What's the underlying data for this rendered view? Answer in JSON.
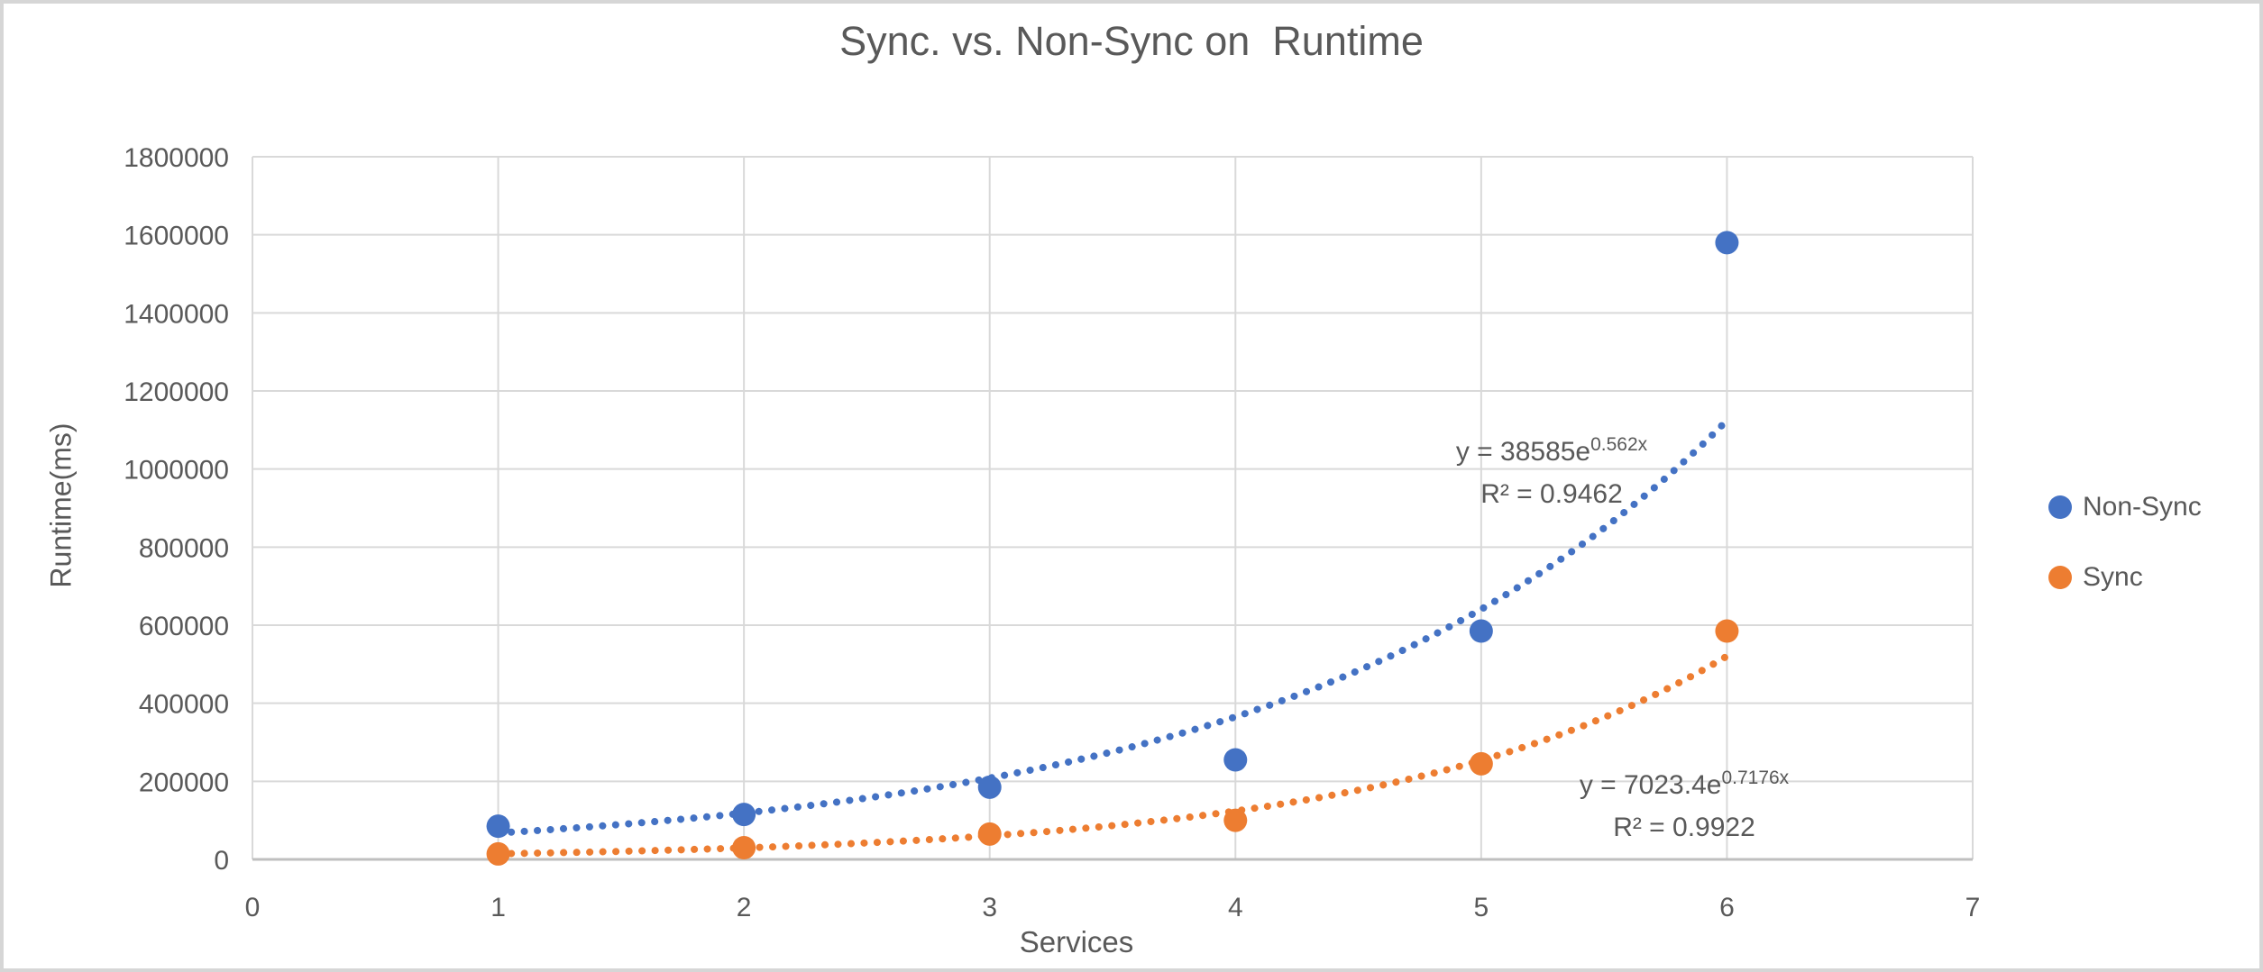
{
  "window": {
    "border_color": "#d6d6d6",
    "background": "#ffffff"
  },
  "chart_data": {
    "type": "scatter",
    "title": "Sync. vs. Non-Sync on  Runtime",
    "xlabel": "Services",
    "ylabel": "Runtime(ms)",
    "xlim": [
      0,
      7
    ],
    "ylim": [
      0,
      1800000
    ],
    "x_ticks": [
      0,
      1,
      2,
      3,
      4,
      5,
      6,
      7
    ],
    "y_ticks": [
      0,
      200000,
      400000,
      600000,
      800000,
      1000000,
      1200000,
      1400000,
      1600000,
      1800000
    ],
    "grid": true,
    "legend_position": "right",
    "axis_text_color": "#595959",
    "gridline_color": "#D9D9D9",
    "axis_line_color": "#BFBFBF",
    "series": [
      {
        "name": "Non-Sync",
        "color": "#4472C4",
        "x": [
          1,
          2,
          3,
          4,
          5,
          6
        ],
        "y": [
          85000,
          115000,
          185000,
          255000,
          585000,
          1580000
        ],
        "trendline": {
          "type": "exponential",
          "a": 38585,
          "b": 0.562,
          "label_prefix": "y = 38585e",
          "label_exponent": "0.562x",
          "r2_label": "R² = 0.9462"
        }
      },
      {
        "name": "Sync",
        "color": "#ED7D31",
        "x": [
          1,
          2,
          3,
          4,
          5,
          6
        ],
        "y": [
          14000,
          30000,
          65000,
          100000,
          245000,
          585000
        ],
        "trendline": {
          "type": "exponential",
          "a": 7023.4,
          "b": 0.7176,
          "label_prefix": "y = 7023.4e",
          "label_exponent": "0.7176x",
          "r2_label": "R² = 0.9922"
        }
      }
    ]
  }
}
